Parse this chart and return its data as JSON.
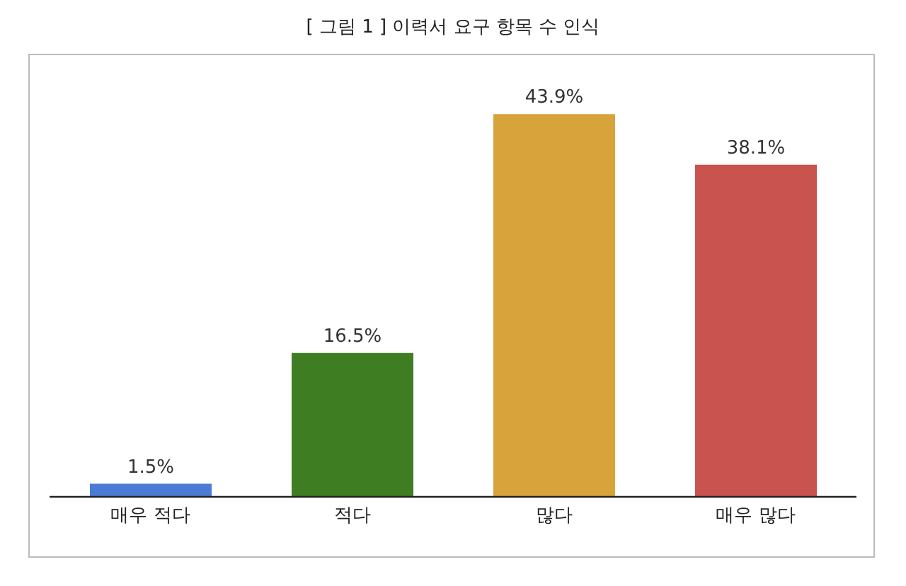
{
  "chart_data": {
    "type": "bar",
    "title": "[ 그림 1 ] 이력서 요구 항목 수 인식",
    "categories": [
      "매우 적다",
      "적다",
      "많다",
      "매우 많다"
    ],
    "values": [
      1.5,
      16.5,
      43.9,
      38.1
    ],
    "colors": [
      "#4a7bd6",
      "#3f7d23",
      "#d9a33b",
      "#c9534f"
    ],
    "value_labels": [
      "1.5%",
      "16.5%",
      "43.9%",
      "38.1%"
    ],
    "grid": false,
    "legend": false
  }
}
